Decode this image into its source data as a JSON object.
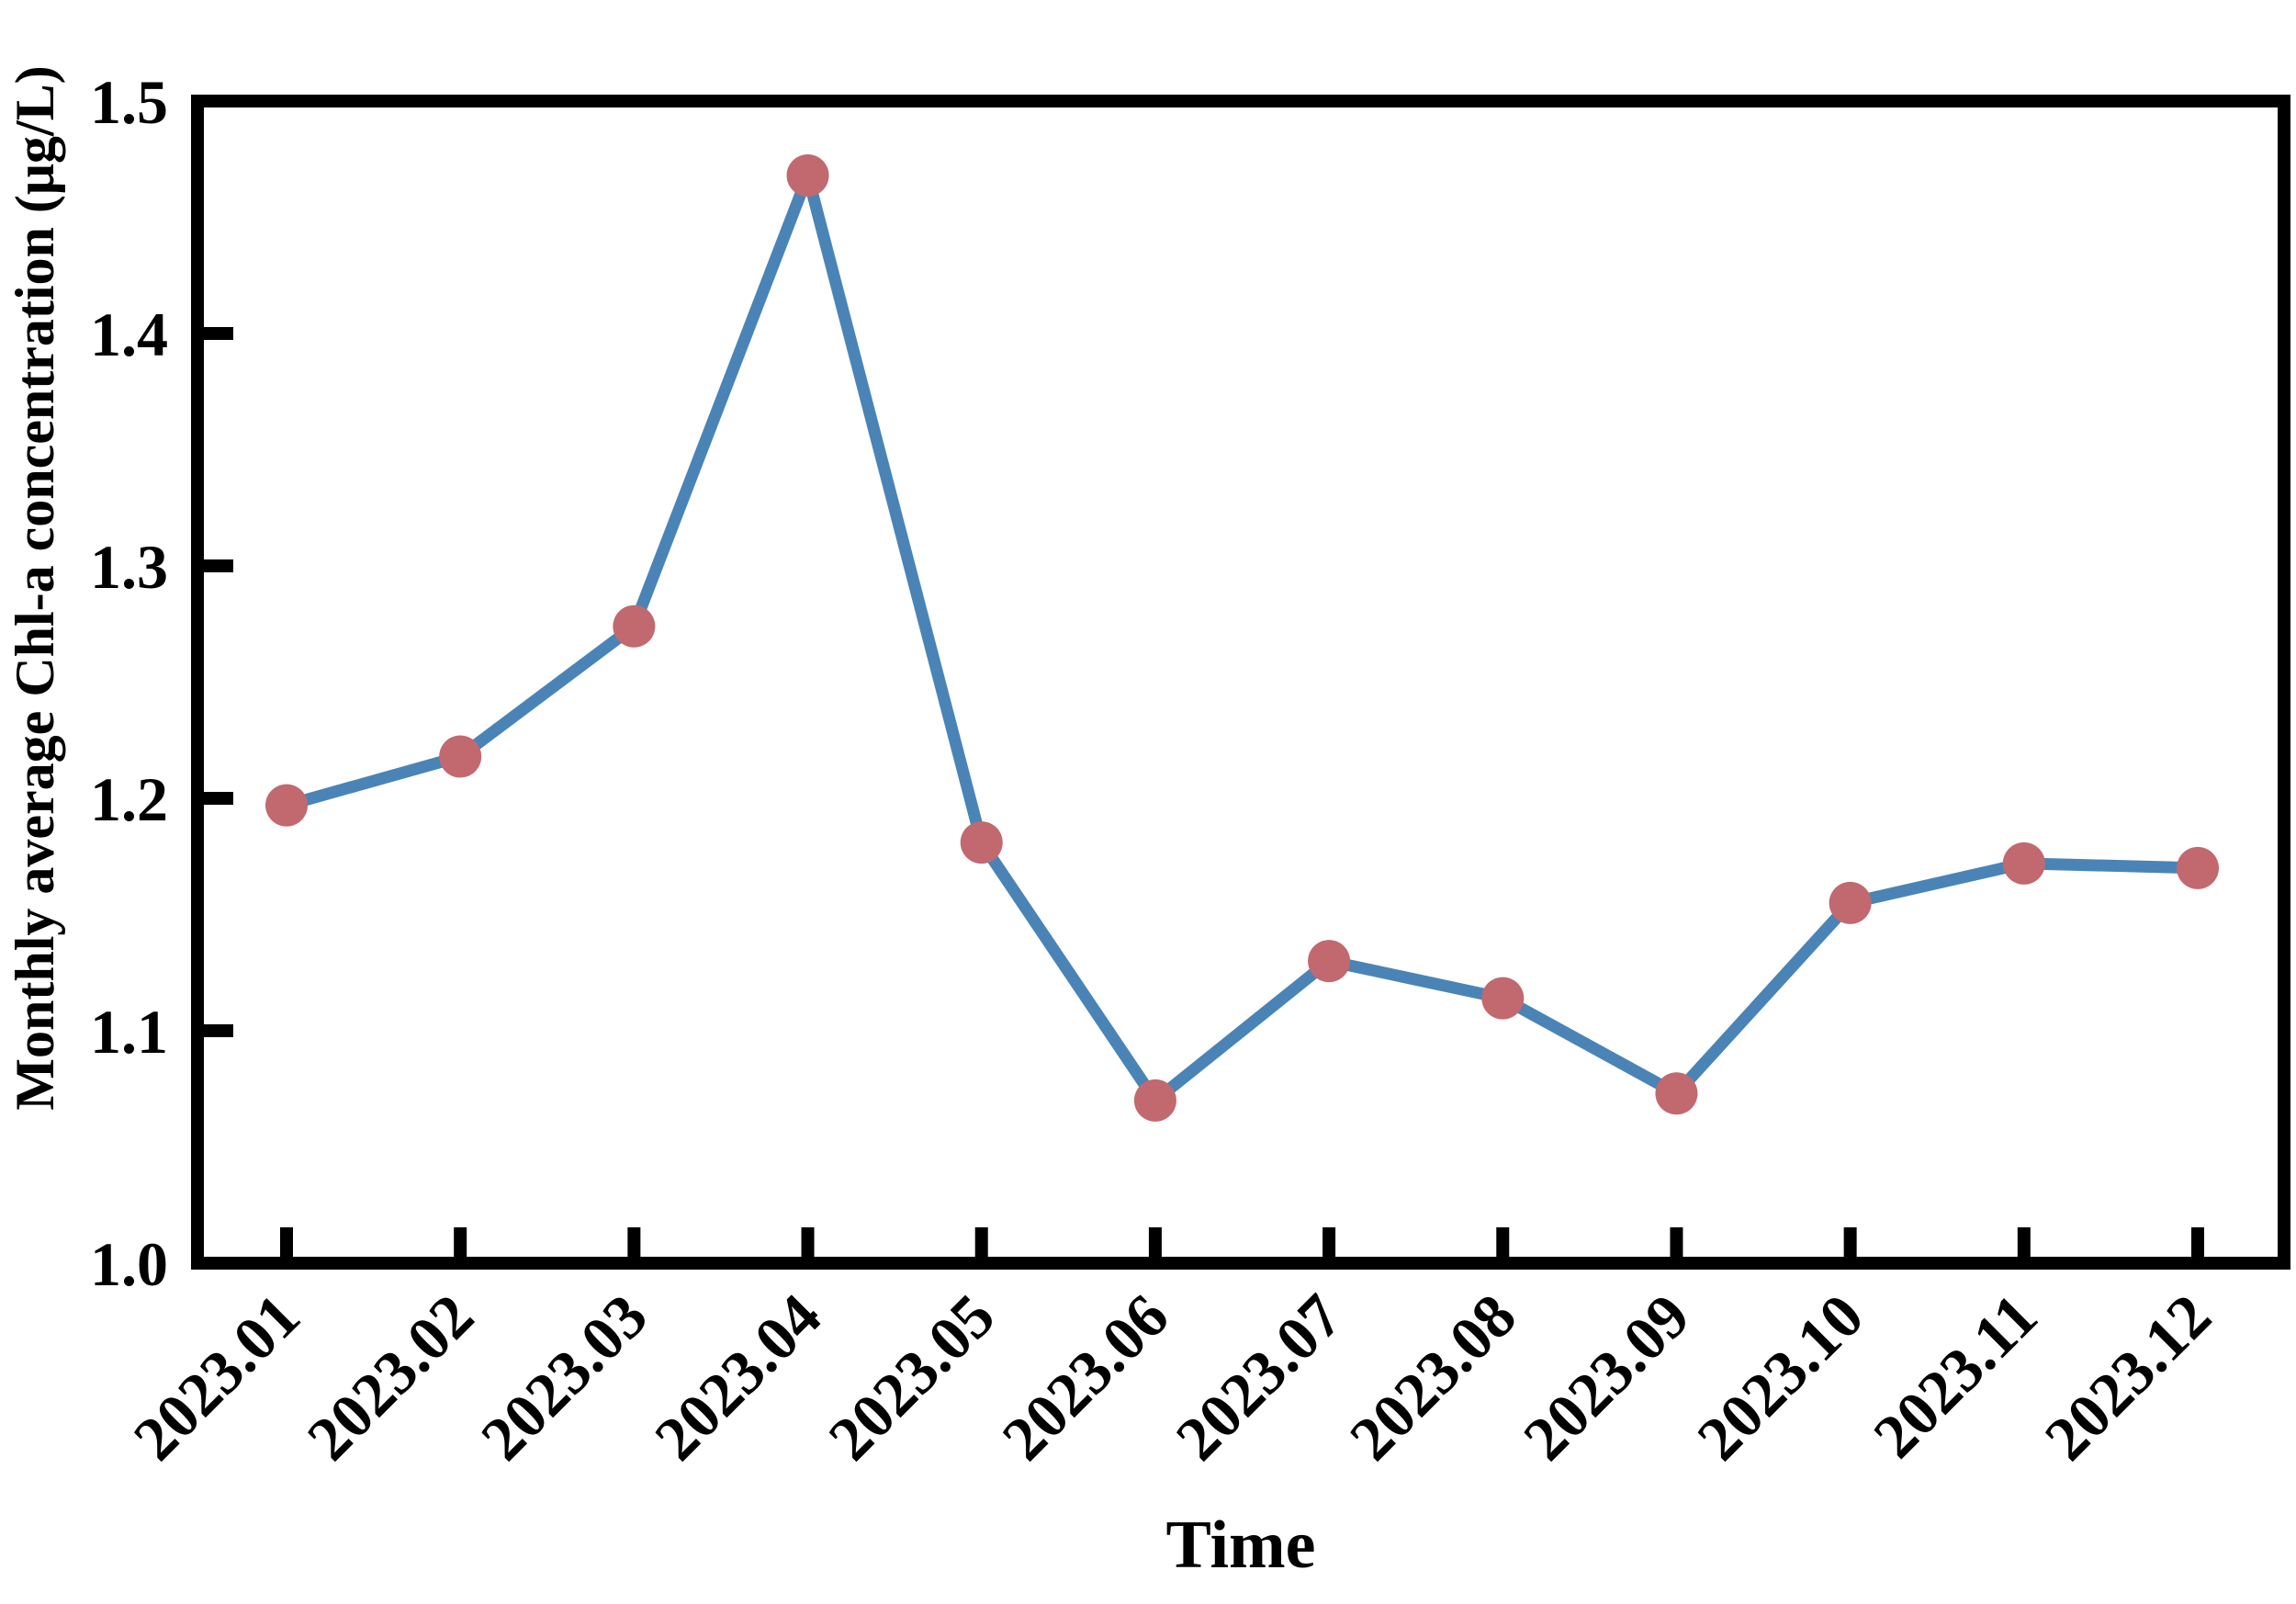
{
  "chart_data": {
    "type": "line",
    "title": "",
    "xlabel": "Time",
    "ylabel": "Monthly average Chl-a concentration (μg/L)",
    "categories": [
      "2023.01",
      "2023.02",
      "2023.03",
      "2023.04",
      "2023.05",
      "2023.06",
      "2023.07",
      "2023.08",
      "2023.09",
      "2023.10",
      "2023.11",
      "2023.12"
    ],
    "series": [
      {
        "name": "Monthly average Chl-a concentration",
        "values": [
          1.197,
          1.218,
          1.274,
          1.468,
          1.181,
          1.07,
          1.13,
          1.114,
          1.073,
          1.155,
          1.172,
          1.17
        ]
      }
    ],
    "ylim": [
      1.0,
      1.5
    ],
    "yticks": [
      1.0,
      1.1,
      1.2,
      1.3,
      1.4,
      1.5
    ],
    "yticklabels": [
      "1.0",
      "1.1",
      "1.2",
      "1.3",
      "1.4",
      "1.5"
    ],
    "grid": false,
    "legend_position": "none",
    "line_color": "#4a84b6",
    "marker_color": "#c1696f",
    "axis_color": "#000000",
    "background_color": "#ffffff"
  }
}
